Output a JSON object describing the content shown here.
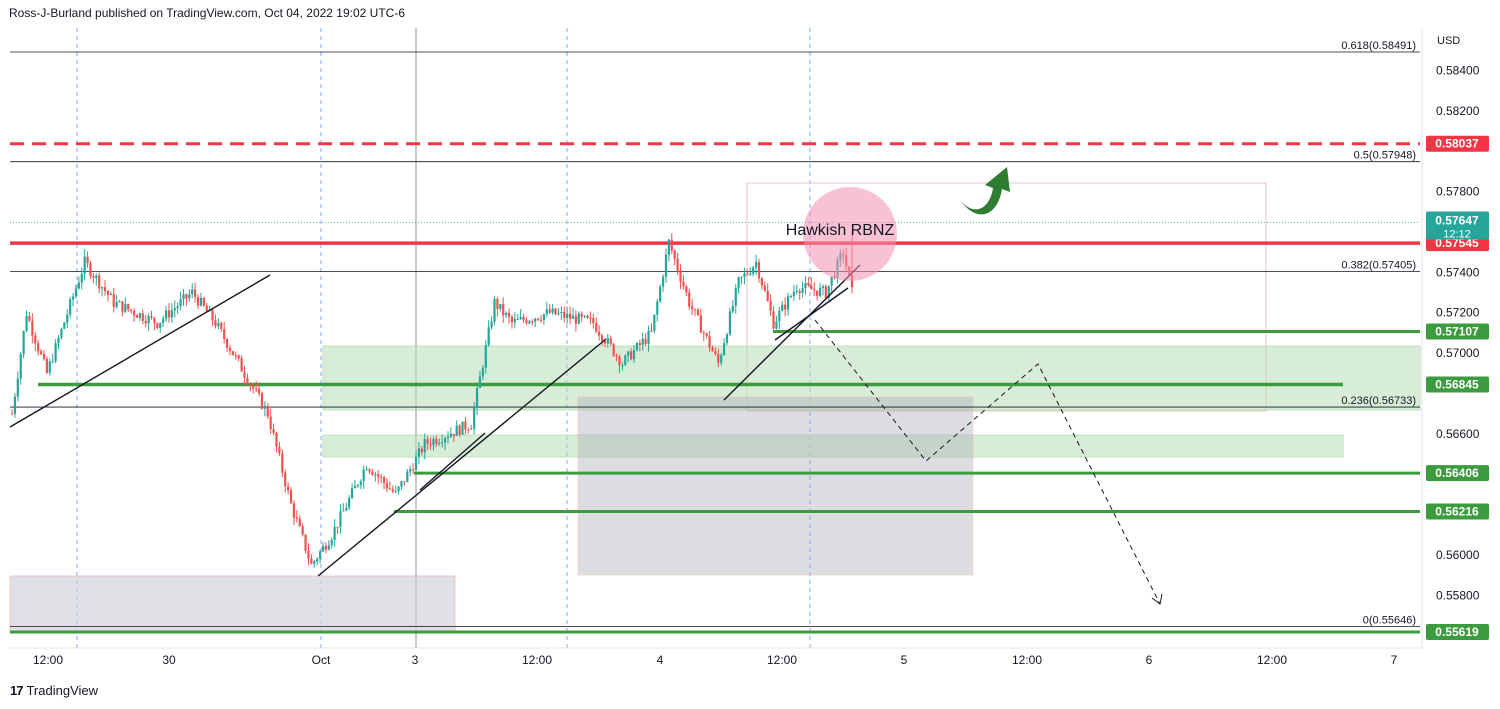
{
  "header": {
    "publisher_line": "Ross-J-Burland published on TradingView.com, Oct 04, 2022 19:02 UTC-6"
  },
  "footer": {
    "logo_mark": "17",
    "brand": "TradingView"
  },
  "colors": {
    "bull": "#26a69a",
    "bear": "#ef5350",
    "resistance": "#f23645",
    "support": "#3d9b3f",
    "zone": "#b8dfb7",
    "grey_box": "#d1d4dc",
    "arrow": "#2e7d32"
  },
  "chart_data": {
    "type": "candlestick",
    "instrument_currency": "USD",
    "y_axis": {
      "min": 0.5554,
      "max": 0.586,
      "ticks": [
        0.584,
        0.582,
        0.578,
        0.574,
        0.572,
        0.57,
        0.566,
        0.56,
        0.558
      ]
    },
    "x_axis": {
      "ticks": [
        "12:00",
        "30",
        "Oct",
        "3",
        "12:00",
        "4",
        "12:00",
        "5",
        "12:00",
        "6",
        "12:00",
        "7"
      ]
    },
    "current_price": {
      "value": 0.57647,
      "label": "0.57647",
      "countdown": "12:12"
    },
    "price_labels": [
      {
        "value": 0.58037,
        "label": "0.58037",
        "color": "#f23645"
      },
      {
        "value": 0.57545,
        "label": "0.57545",
        "color": "#f23645"
      },
      {
        "value": 0.57107,
        "label": "0.57107",
        "color": "#3d9b3f"
      },
      {
        "value": 0.56845,
        "label": "0.56845",
        "color": "#3d9b3f"
      },
      {
        "value": 0.56406,
        "label": "0.56406",
        "color": "#3d9b3f"
      },
      {
        "value": 0.56216,
        "label": "0.56216",
        "color": "#3d9b3f"
      },
      {
        "value": 0.55619,
        "label": "0.55619",
        "color": "#3d9b3f"
      }
    ],
    "fib_levels": [
      {
        "ratio": "0.618",
        "value": 0.58491,
        "label": "0.618(0.58491)"
      },
      {
        "ratio": "0.5",
        "value": 0.57948,
        "label": "0.5(0.57948)"
      },
      {
        "ratio": "0.382",
        "value": 0.57405,
        "label": "0.382(0.57405)"
      },
      {
        "ratio": "0.236",
        "value": 0.56733,
        "label": "0.236(0.56733)"
      },
      {
        "ratio": "0",
        "value": 0.55646,
        "label": "0(0.55646)"
      }
    ],
    "annotations": [
      {
        "text": "Hawkish RBNZ"
      }
    ],
    "anchors": [
      {
        "t": 0,
        "p": 0.567
      },
      {
        "t": 5,
        "p": 0.572
      },
      {
        "t": 12,
        "p": 0.569
      },
      {
        "t": 25,
        "p": 0.5745
      },
      {
        "t": 35,
        "p": 0.5725
      },
      {
        "t": 50,
        "p": 0.5715
      },
      {
        "t": 62,
        "p": 0.573
      },
      {
        "t": 70,
        "p": 0.5715
      },
      {
        "t": 80,
        "p": 0.569
      },
      {
        "t": 88,
        "p": 0.567
      },
      {
        "t": 96,
        "p": 0.5625
      },
      {
        "t": 103,
        "p": 0.5595
      },
      {
        "t": 110,
        "p": 0.561
      },
      {
        "t": 122,
        "p": 0.5645
      },
      {
        "t": 132,
        "p": 0.563
      },
      {
        "t": 142,
        "p": 0.5655
      },
      {
        "t": 158,
        "p": 0.5665
      },
      {
        "t": 166,
        "p": 0.5725
      },
      {
        "t": 172,
        "p": 0.5715
      },
      {
        "t": 185,
        "p": 0.572
      },
      {
        "t": 200,
        "p": 0.5715
      },
      {
        "t": 210,
        "p": 0.5695
      },
      {
        "t": 220,
        "p": 0.571
      },
      {
        "t": 226,
        "p": 0.5755
      },
      {
        "t": 233,
        "p": 0.5725
      },
      {
        "t": 243,
        "p": 0.5695
      },
      {
        "t": 250,
        "p": 0.5735
      },
      {
        "t": 256,
        "p": 0.5745
      },
      {
        "t": 262,
        "p": 0.5715
      },
      {
        "t": 270,
        "p": 0.5733
      },
      {
        "t": 280,
        "p": 0.573
      },
      {
        "t": 286,
        "p": 0.575
      },
      {
        "t": 289,
        "p": 0.573
      }
    ]
  }
}
